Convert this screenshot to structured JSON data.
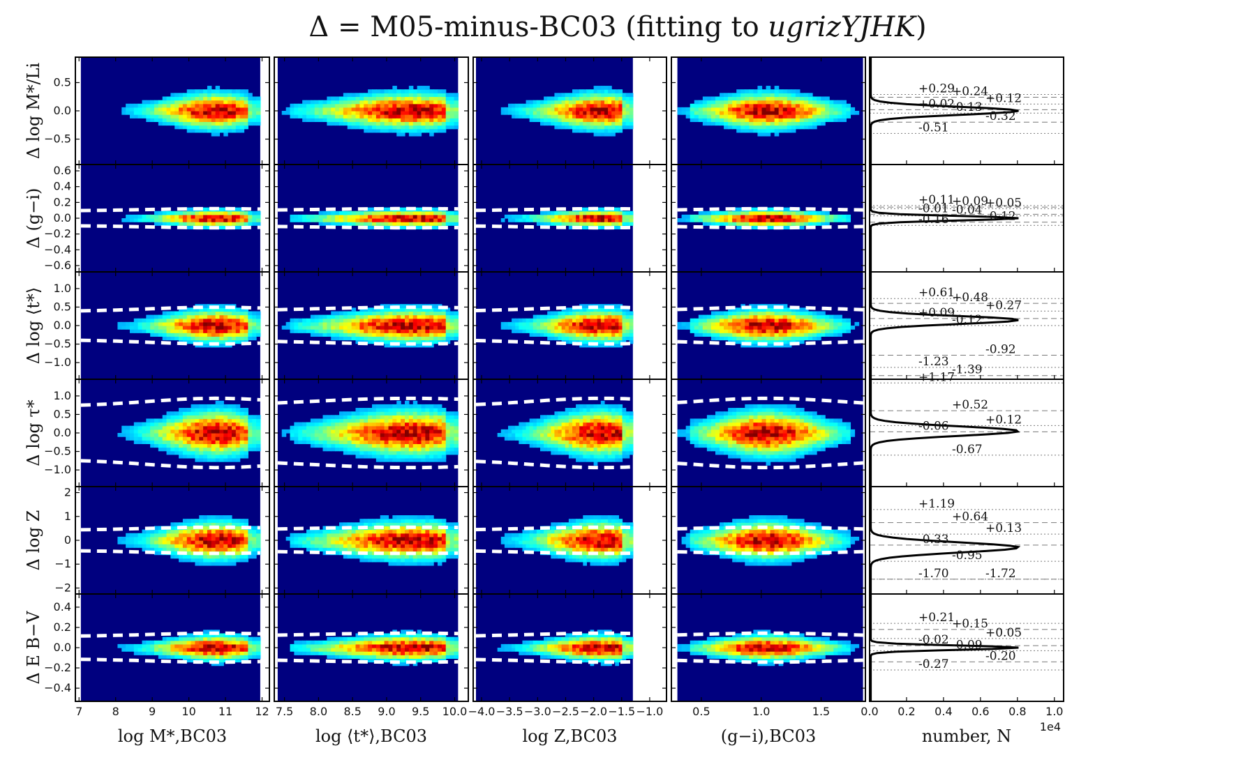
{
  "chart_data": {
    "type": "heatmap",
    "title": "Δ = M05-minus-BC03 (fitting to ugrizYJHK)",
    "columns": [
      {
        "id": "mstar",
        "xlabel": "log M*,BC03",
        "xlim": [
          6.9,
          12.2
        ],
        "ticks": [
          7,
          8,
          9,
          10,
          11,
          12
        ],
        "data_xrange": [
          7.05,
          11.95
        ],
        "core": [
          10.3,
          11.2
        ],
        "core_y_shift": 0.0,
        "tick_labels": [
          "7",
          "8",
          "9",
          "10",
          "11",
          "12"
        ]
      },
      {
        "id": "tstar",
        "xlabel": "log ⟨t*⟩,BC03",
        "xlim": [
          7.35,
          10.2
        ],
        "ticks": [
          7.5,
          8,
          8.5,
          9,
          9.5,
          10
        ],
        "data_xrange": [
          7.4,
          10.05
        ],
        "core": [
          8.9,
          9.8
        ],
        "core_y_shift": 0.0,
        "tick_labels": [
          "7.5",
          "8.0",
          "8.5",
          "9.0",
          "9.5",
          "10.0"
        ]
      },
      {
        "id": "Z",
        "xlabel": "log Z,BC03",
        "xlim": [
          -4.15,
          -0.7
        ],
        "ticks": [
          -4,
          -3.5,
          -3,
          -2.5,
          -2,
          -1.5,
          -1
        ],
        "data_xrange": [
          -4.1,
          -1.3
        ],
        "core": [
          -2.2,
          -1.5
        ],
        "core_y_shift": 0.0,
        "tick_labels": [
          "−4.0",
          "−3.5",
          "−3.0",
          "−2.5",
          "−2.0",
          "−1.5",
          "−1.0"
        ]
      },
      {
        "id": "gi",
        "xlabel": "(g−i),BC03",
        "xlim": [
          0.25,
          1.87
        ],
        "ticks": [
          0.5,
          1.0,
          1.5
        ],
        "data_xrange": [
          0.3,
          1.85
        ],
        "core": [
          0.9,
          1.2
        ],
        "core_y_shift": 0.0,
        "tick_labels": [
          "0.5",
          "1.0",
          "1.5"
        ]
      }
    ],
    "rows": [
      {
        "id": "ml",
        "ylabel": "Δ log M*/Li",
        "ylim": [
          -0.95,
          0.95
        ],
        "ticks": [
          -0.5,
          0,
          0.5
        ],
        "tick_labels": [
          "−0.5",
          "0.0",
          "0.5"
        ],
        "sigma": 0.18,
        "contour": null,
        "hist": {
          "annotations": [
            {
              "text": "+0.29",
              "y": 0.29
            },
            {
              "text": "+0.24",
              "y": 0.24
            },
            {
              "text": "+0.12",
              "y": 0.12
            },
            {
              "text": "+0.02",
              "y": 0.02
            },
            {
              "text": "-0.13",
              "y": -0.04
            },
            {
              "text": "-0.32",
              "y": -0.2
            },
            {
              "text": "-0.51",
              "y": -0.4
            }
          ],
          "peak": 0.0,
          "width": 0.1
        }
      },
      {
        "id": "gi",
        "ylabel": "Δ (g−i)",
        "ylim": [
          -0.68,
          0.68
        ],
        "ticks": [
          -0.6,
          -0.4,
          -0.2,
          0,
          0.2,
          0.4,
          0.6
        ],
        "tick_labels": [
          "−0.6",
          "−0.4",
          "−0.2",
          "0.0",
          "0.2",
          "0.4",
          "0.6"
        ],
        "sigma": 0.06,
        "contour": 0.11,
        "hist": {
          "annotations": [
            {
              "text": "+0.11",
              "y": 0.16
            },
            {
              "text": "+0.09",
              "y": 0.14
            },
            {
              "text": "+0.05",
              "y": 0.12
            },
            {
              "text": "-0.01",
              "y": 0.05
            },
            {
              "text": "-0.04",
              "y": 0.03
            },
            {
              "text": "-0.12",
              "y": -0.05
            },
            {
              "text": "-0.16",
              "y": -0.09
            }
          ],
          "peak": 0.0,
          "width": 0.04
        }
      },
      {
        "id": "tstar",
        "ylabel": "Δ log ⟨t*⟩",
        "ylim": [
          -1.45,
          1.45
        ],
        "ticks": [
          -1,
          -0.5,
          0,
          0.5,
          1
        ],
        "tick_labels": [
          "−1.0",
          "−0.5",
          "0.0",
          "0.5",
          "1.0"
        ],
        "sigma": 0.25,
        "contour": 0.45,
        "hist": {
          "annotations": [
            {
              "text": "+0.61",
              "y": 0.73
            },
            {
              "text": "+0.48",
              "y": 0.6
            },
            {
              "text": "+0.27",
              "y": 0.39
            },
            {
              "text": "+0.09",
              "y": 0.19
            },
            {
              "text": "-0.12",
              "y": 0.0
            },
            {
              "text": "-0.92",
              "y": -0.8
            },
            {
              "text": "-1.23",
              "y": -1.13
            },
            {
              "text": "-1.39",
              "y": -1.35
            }
          ],
          "peak": 0.15,
          "width": 0.15
        }
      },
      {
        "id": "tau",
        "ylabel": "Δ log τ*",
        "ylim": [
          -1.45,
          1.45
        ],
        "ticks": [
          -1,
          -0.5,
          0,
          0.5,
          1
        ],
        "tick_labels": [
          "−1.0",
          "−0.5",
          "0.0",
          "0.5",
          "1.0"
        ],
        "sigma": 0.35,
        "contour": 0.85,
        "hist": {
          "annotations": [
            {
              "text": "+1.17",
              "y": 1.35
            },
            {
              "text": "+0.52",
              "y": 0.6
            },
            {
              "text": "+0.12",
              "y": 0.2
            },
            {
              "text": "-0.06",
              "y": 0.03
            },
            {
              "text": "-0.67",
              "y": -0.6
            }
          ],
          "peak": 0.05,
          "width": 0.18
        }
      },
      {
        "id": "Z",
        "ylabel": "Δ log Z",
        "ylim": [
          -2.25,
          2.25
        ],
        "ticks": [
          -2,
          -1,
          0,
          1,
          2
        ],
        "tick_labels": [
          "−2",
          "−1",
          "0",
          "1",
          "2"
        ],
        "sigma": 0.45,
        "contour": 0.5,
        "hist": {
          "annotations": [
            {
              "text": "+1.19",
              "y": 1.29
            },
            {
              "text": "+0.64",
              "y": 0.74
            },
            {
              "text": "+0.13",
              "y": 0.26
            },
            {
              "text": "-0.33",
              "y": -0.2
            },
            {
              "text": "-0.95",
              "y": -0.88
            },
            {
              "text": "-1.72",
              "y": -1.63
            },
            {
              "text": "-1.70",
              "y": -1.63
            }
          ],
          "peak": -0.3,
          "width": 0.3
        }
      },
      {
        "id": "ebv",
        "ylabel": "Δ E B−V",
        "ylim": [
          -0.53,
          0.53
        ],
        "ticks": [
          -0.4,
          -0.2,
          0,
          0.2,
          0.4
        ],
        "tick_labels": [
          "−0.4",
          "−0.2",
          "0.0",
          "0.2",
          "0.4"
        ],
        "sigma": 0.07,
        "contour": 0.13,
        "hist": {
          "annotations": [
            {
              "text": "+0.21",
              "y": 0.24
            },
            {
              "text": "+0.15",
              "y": 0.18
            },
            {
              "text": "+0.05",
              "y": 0.09
            },
            {
              "text": "-0.02",
              "y": 0.02
            },
            {
              "text": "-0.09",
              "y": -0.03
            },
            {
              "text": "-0.20",
              "y": -0.14
            },
            {
              "text": "-0.27",
              "y": -0.22
            }
          ],
          "peak": 0.0,
          "width": 0.03
        }
      }
    ],
    "histogram": {
      "xlabel": "number, N",
      "xlim": [
        0,
        10500
      ],
      "ticks": [
        0,
        2000,
        4000,
        6000,
        8000,
        10000
      ],
      "tick_labels": [
        "0.0",
        "0.2",
        "0.4",
        "0.6",
        "0.8",
        "1.0"
      ],
      "offset_label": "1e4"
    },
    "colormap": "jet",
    "background": "#00007f"
  },
  "title": {
    "prefix": "Δ = M05-minus-BC03 (fitting to ",
    "italic": "ugrizYJHK",
    "suffix": ")"
  }
}
